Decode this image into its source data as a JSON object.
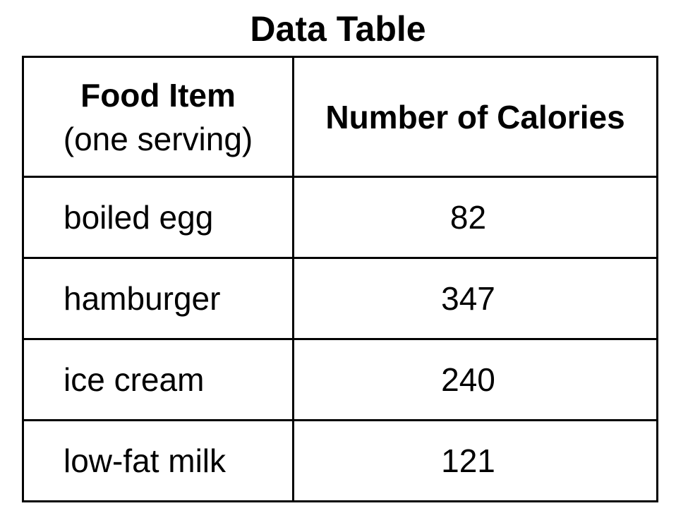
{
  "title": "Data Table",
  "table": {
    "headers": {
      "food_main": "Food Item",
      "food_sub": "(one serving)",
      "calories": "Number of Calories"
    },
    "rows": [
      {
        "food": "boiled egg",
        "calories": "82"
      },
      {
        "food": "hamburger",
        "calories": "347"
      },
      {
        "food": "ice cream",
        "calories": "240"
      },
      {
        "food": "low-fat milk",
        "calories": "121"
      }
    ]
  }
}
